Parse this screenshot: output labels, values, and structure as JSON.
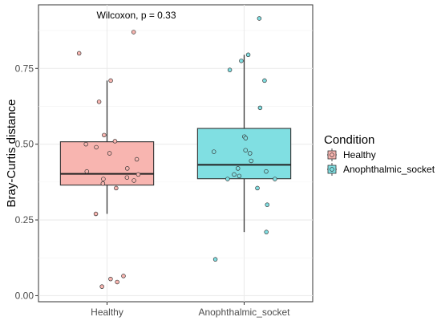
{
  "chart_data": {
    "type": "box",
    "annotation": "Wilcoxon, p = 0.33",
    "ylabel": "Bray-Curtis distance",
    "xlabel": "",
    "ylim": [
      -0.02,
      0.96
    ],
    "y_ticks": [
      "0.00",
      "0.25",
      "0.50",
      "0.75"
    ],
    "grid": true,
    "legend": {
      "title": "Condition",
      "position": "right"
    },
    "categories": [
      "Healthy",
      "Anophthalmic_socket"
    ],
    "series": [
      {
        "name": "Healthy",
        "color": "#F8766D",
        "fill": "#F8B5B0",
        "box": {
          "whisker_low": 0.27,
          "q1": 0.365,
          "median": 0.402,
          "q3": 0.508,
          "whisker_high": 0.71
        },
        "points": [
          0.87,
          0.8,
          0.71,
          0.64,
          0.53,
          0.51,
          0.5,
          0.49,
          0.47,
          0.45,
          0.42,
          0.41,
          0.4,
          0.39,
          0.385,
          0.38,
          0.37,
          0.355,
          0.27,
          0.065,
          0.055,
          0.045,
          0.03
        ]
      },
      {
        "name": "Anophthalmic_socket",
        "color": "#00BFC4",
        "fill": "#80DFE2",
        "box": {
          "whisker_low": 0.21,
          "q1": 0.386,
          "median": 0.432,
          "q3": 0.552,
          "whisker_high": 0.795
        },
        "points": [
          0.915,
          0.795,
          0.775,
          0.745,
          0.71,
          0.62,
          0.525,
          0.52,
          0.48,
          0.475,
          0.47,
          0.445,
          0.42,
          0.41,
          0.4,
          0.395,
          0.385,
          0.385,
          0.355,
          0.3,
          0.21,
          0.12
        ]
      }
    ]
  }
}
